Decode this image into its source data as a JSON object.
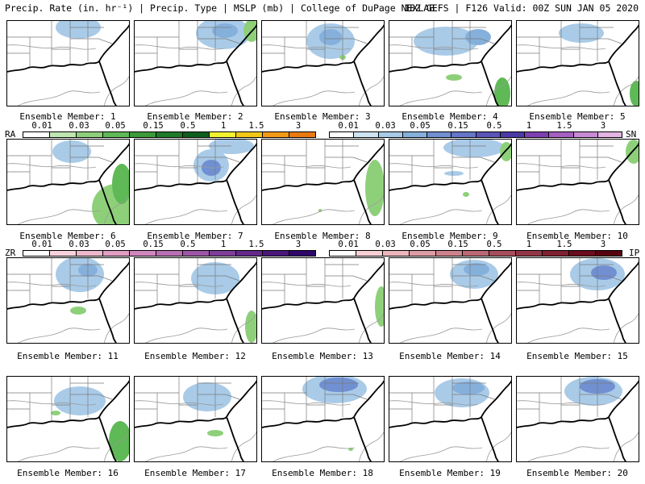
{
  "header": {
    "left": "Precip. Rate (in. hr⁻¹) | Precip. Type | MSLP (mb) | College of DuPage NEXLAB",
    "right": "18Z GEFS | F126 Valid: 00Z SUN JAN 05 2020"
  },
  "members": [
    "Ensemble Member: 1",
    "Ensemble Member: 2",
    "Ensemble Member: 3",
    "Ensemble Member: 4",
    "Ensemble Member: 5",
    "Ensemble Member: 6",
    "Ensemble Member: 7",
    "Ensemble Member: 8",
    "Ensemble Member: 9",
    "Ensemble Member: 10",
    "Ensemble Member: 11",
    "Ensemble Member: 12",
    "Ensemble Member: 13",
    "Ensemble Member: 14",
    "Ensemble Member: 15",
    "Ensemble Member: 16",
    "Ensemble Member: 17",
    "Ensemble Member: 18",
    "Ensemble Member: 19",
    "Ensemble Member: 20"
  ],
  "legends": {
    "ra": {
      "code": "RA",
      "ticks": [
        "0.01",
        "0.03",
        "0.05",
        "0.15",
        "0.5",
        "1",
        "1.5",
        "3"
      ],
      "colors": [
        "#ffffff",
        "#bfe6b0",
        "#8ed07a",
        "#5fb956",
        "#3a9b3a",
        "#1f7a2a",
        "#0d5e1e",
        "#f2f230",
        "#f2c818",
        "#f29a18",
        "#e87a10"
      ]
    },
    "sn": {
      "code": "SN",
      "ticks": [
        "0.01",
        "0.03",
        "0.05",
        "0.15",
        "0.5",
        "1",
        "1.5",
        "3"
      ],
      "colors": [
        "#ffffff",
        "#cfe4f3",
        "#a9cbe8",
        "#86b0dc",
        "#7090d2",
        "#6676c8",
        "#5a55b8",
        "#4a3aa6",
        "#7e3fb2",
        "#a660c2",
        "#c98ad4",
        "#e3b4e4"
      ]
    },
    "zr": {
      "code": "ZR",
      "ticks": [
        "0.01",
        "0.03",
        "0.05",
        "0.15",
        "0.5",
        "1",
        "1.5",
        "3"
      ],
      "colors": [
        "#ffffff",
        "#f8d2dc",
        "#eeb8cc",
        "#e09ec2",
        "#cf86bc",
        "#b86eb2",
        "#9c56a6",
        "#7e3e98",
        "#62288a",
        "#48167a",
        "#2e066a"
      ]
    },
    "ip": {
      "code": "IP",
      "ticks": [
        "0.01",
        "0.03",
        "0.05",
        "0.15",
        "0.5",
        "1",
        "1.5",
        "3"
      ],
      "colors": [
        "#ffffff",
        "#f6d0d4",
        "#eab6bc",
        "#dc9ca4",
        "#cc828c",
        "#ba6874",
        "#a64e5c",
        "#923646",
        "#7e2030",
        "#6a0c1e",
        "#560010"
      ]
    }
  }
}
